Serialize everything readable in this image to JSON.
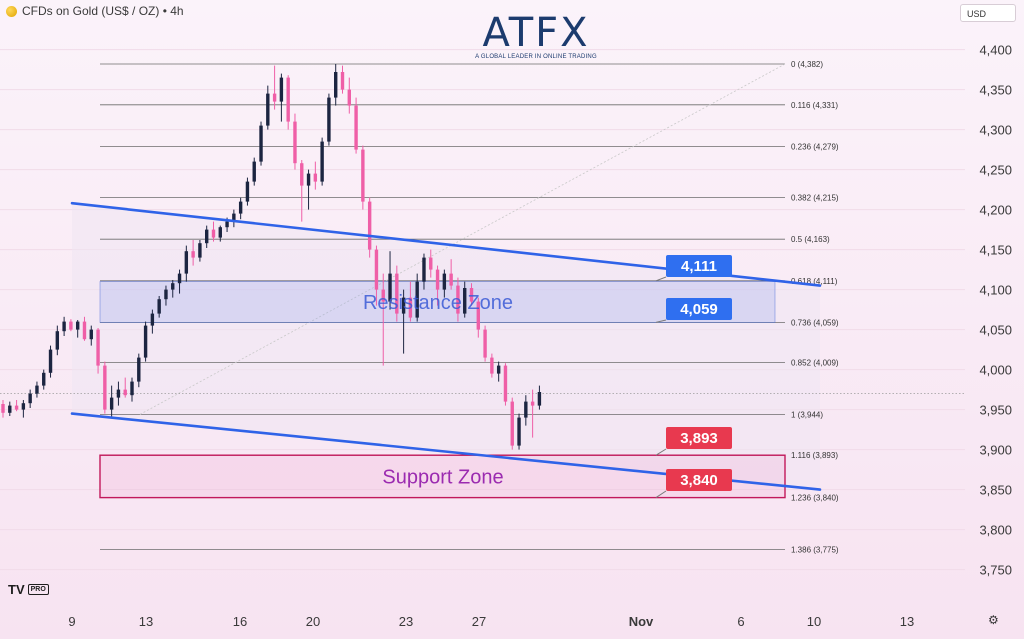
{
  "header": {
    "symbol_title": "CFDs on Gold (US$ / OZ) • 4h",
    "currency": "USD"
  },
  "logo": {
    "word": "ATFX",
    "tagline": "A GLOBAL LEADER IN ONLINE TRADING",
    "accent_color": "#e8441d",
    "brand_color": "#1c3b6e"
  },
  "tv": {
    "text": "TV",
    "badge": "PRO"
  },
  "chart_data": {
    "type": "candlestick",
    "title": "CFDs on Gold (US$ / OZ) • 4h",
    "ylim": [
      3712,
      4432
    ],
    "y_ticks": [
      4400,
      4350,
      4300,
      4250,
      4200,
      4150,
      4100,
      4050,
      4000,
      3950,
      3900,
      3850,
      3800,
      3750
    ],
    "y_tick_labels": [
      "4,400",
      "4,350",
      "4,300",
      "4,250",
      "4,200",
      "4,150",
      "4,100",
      "4,050",
      "4,000",
      "3,950",
      "3,900",
      "3,850",
      "3,800",
      "3,750"
    ],
    "x_ticks": [
      {
        "label": "9",
        "bold": false
      },
      {
        "label": "13",
        "bold": false
      },
      {
        "label": "16",
        "bold": false
      },
      {
        "label": "20",
        "bold": false
      },
      {
        "label": "23",
        "bold": false
      },
      {
        "label": "27",
        "bold": false
      },
      {
        "label": "Nov",
        "bold": true
      },
      {
        "label": "6",
        "bold": false
      },
      {
        "label": "10",
        "bold": false
      },
      {
        "label": "13",
        "bold": false
      }
    ],
    "colors": {
      "up": "#1c2541",
      "down": "#ef5fa7",
      "channel": "#2f63e8",
      "resistance": "#3a62d8",
      "support": "#c2185b",
      "fib": "#6c6c6c"
    },
    "fib_levels": [
      {
        "label": "0 (4,382)",
        "value": 4382
      },
      {
        "label": "0.116 (4,331)",
        "value": 4331
      },
      {
        "label": "0.236 (4,279)",
        "value": 4279
      },
      {
        "label": "0.382 (4,215)",
        "value": 4215
      },
      {
        "label": "0.5 (4,163)",
        "value": 4163
      },
      {
        "label": "0.618 (4,111)",
        "value": 4111
      },
      {
        "label": "0.736 (4,059)",
        "value": 4059
      },
      {
        "label": "0.852 (4,009)",
        "value": 4009
      },
      {
        "label": "1 (3,944)",
        "value": 3944
      },
      {
        "label": "1.116 (3,893)",
        "value": 3893
      },
      {
        "label": "1.236 (3,840)",
        "value": 3840
      },
      {
        "label": "1.386 (3,775)",
        "value": 3775
      }
    ],
    "zones": [
      {
        "label": "Resistance Zone",
        "top": 4110,
        "bottom": 4059,
        "color": "#3a62d8"
      },
      {
        "label": "Support Zone",
        "top": 3893,
        "bottom": 3840,
        "color": "#c2185b"
      }
    ],
    "channel_lines": [
      {
        "from": [
          0,
          4208
        ],
        "to": [
          1,
          4105
        ]
      },
      {
        "from": [
          0,
          3945
        ],
        "to": [
          1,
          3850
        ]
      }
    ],
    "markers": [
      {
        "label": "4,111",
        "value": 4111,
        "kind": "resistance"
      },
      {
        "label": "4,059",
        "value": 4059,
        "kind": "resistance"
      },
      {
        "label": "3,893",
        "value": 3893,
        "kind": "support"
      },
      {
        "label": "3,840",
        "value": 3840,
        "kind": "support"
      }
    ],
    "current_price": 3970,
    "candles": [
      [
        3957,
        3962,
        3940,
        3946
      ],
      [
        3946,
        3960,
        3942,
        3955
      ],
      [
        3955,
        3962,
        3948,
        3950
      ],
      [
        3950,
        3962,
        3940,
        3958
      ],
      [
        3958,
        3975,
        3952,
        3970
      ],
      [
        3970,
        3985,
        3965,
        3980
      ],
      [
        3980,
        4000,
        3975,
        3996
      ],
      [
        3996,
        4030,
        3990,
        4025
      ],
      [
        4025,
        4055,
        4018,
        4048
      ],
      [
        4048,
        4066,
        4042,
        4060
      ],
      [
        4060,
        4063,
        4048,
        4050
      ],
      [
        4050,
        4062,
        4040,
        4060
      ],
      [
        4060,
        4066,
        4036,
        4038
      ],
      [
        4038,
        4055,
        4030,
        4050
      ],
      [
        4050,
        4052,
        3995,
        4005
      ],
      [
        4005,
        4010,
        3945,
        3950
      ],
      [
        3950,
        3980,
        3940,
        3965
      ],
      [
        3965,
        3985,
        3955,
        3975
      ],
      [
        3975,
        3990,
        3965,
        3968
      ],
      [
        3968,
        3990,
        3960,
        3985
      ],
      [
        3985,
        4020,
        3978,
        4015
      ],
      [
        4015,
        4060,
        4010,
        4055
      ],
      [
        4055,
        4075,
        4045,
        4070
      ],
      [
        4070,
        4092,
        4065,
        4088
      ],
      [
        4088,
        4105,
        4080,
        4100
      ],
      [
        4100,
        4112,
        4090,
        4108
      ],
      [
        4108,
        4125,
        4095,
        4120
      ],
      [
        4120,
        4155,
        4110,
        4148
      ],
      [
        4148,
        4162,
        4130,
        4140
      ],
      [
        4140,
        4162,
        4135,
        4158
      ],
      [
        4158,
        4180,
        4152,
        4175
      ],
      [
        4175,
        4185,
        4160,
        4165
      ],
      [
        4165,
        4180,
        4160,
        4178
      ],
      [
        4178,
        4190,
        4172,
        4185
      ],
      [
        4185,
        4200,
        4178,
        4195
      ],
      [
        4195,
        4215,
        4188,
        4210
      ],
      [
        4210,
        4240,
        4205,
        4235
      ],
      [
        4235,
        4265,
        4230,
        4260
      ],
      [
        4260,
        4310,
        4255,
        4305
      ],
      [
        4305,
        4355,
        4300,
        4345
      ],
      [
        4345,
        4380,
        4325,
        4335
      ],
      [
        4335,
        4370,
        4310,
        4365
      ],
      [
        4365,
        4368,
        4300,
        4310
      ],
      [
        4310,
        4320,
        4250,
        4258
      ],
      [
        4258,
        4262,
        4185,
        4230
      ],
      [
        4230,
        4250,
        4200,
        4245
      ],
      [
        4245,
        4260,
        4225,
        4235
      ],
      [
        4235,
        4290,
        4230,
        4285
      ],
      [
        4285,
        4345,
        4280,
        4340
      ],
      [
        4340,
        4382,
        4330,
        4372
      ],
      [
        4372,
        4380,
        4345,
        4350
      ],
      [
        4350,
        4365,
        4320,
        4330
      ],
      [
        4330,
        4340,
        4270,
        4275
      ],
      [
        4275,
        4280,
        4200,
        4210
      ],
      [
        4210,
        4215,
        4140,
        4150
      ],
      [
        4150,
        4155,
        4080,
        4100
      ],
      [
        4100,
        4120,
        4005,
        4085
      ],
      [
        4085,
        4148,
        4075,
        4120
      ],
      [
        4120,
        4130,
        4060,
        4070
      ],
      [
        4070,
        4100,
        4020,
        4090
      ],
      [
        4090,
        4110,
        4060,
        4065
      ],
      [
        4065,
        4120,
        4060,
        4110
      ],
      [
        4110,
        4145,
        4100,
        4140
      ],
      [
        4140,
        4150,
        4115,
        4125
      ],
      [
        4125,
        4130,
        4080,
        4100
      ],
      [
        4100,
        4125,
        4090,
        4120
      ],
      [
        4120,
        4138,
        4100,
        4105
      ],
      [
        4105,
        4115,
        4060,
        4070
      ],
      [
        4070,
        4110,
        4065,
        4102
      ],
      [
        4102,
        4108,
        4080,
        4085
      ],
      [
        4085,
        4090,
        4040,
        4050
      ],
      [
        4050,
        4055,
        4010,
        4015
      ],
      [
        4015,
        4020,
        3990,
        3995
      ],
      [
        3995,
        4010,
        3985,
        4005
      ],
      [
        4005,
        4008,
        3955,
        3960
      ],
      [
        3960,
        3965,
        3900,
        3905
      ],
      [
        3905,
        3945,
        3900,
        3940
      ],
      [
        3940,
        3968,
        3930,
        3960
      ],
      [
        3960,
        3975,
        3915,
        3955
      ],
      [
        3955,
        3980,
        3950,
        3972
      ]
    ]
  }
}
